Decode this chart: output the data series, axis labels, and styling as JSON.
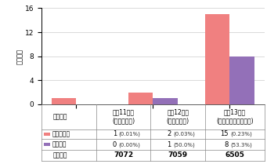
{
  "categories": [
    "平成11年度\n(超音波併用)",
    "平成12年度\n(超音波併用)",
    "平成13年度\n(マンモグラフィ併用)"
  ],
  "cancer_found": [
    1,
    2,
    15
  ],
  "early_cancer": [
    0,
    1,
    8
  ],
  "cancer_color": "#F08080",
  "early_color": "#9370B8",
  "ylabel": "（人数）",
  "xlabel": "（年度）",
  "ylim": [
    0,
    16
  ],
  "yticks": [
    0,
    4,
    8,
    12,
    16
  ],
  "bar_width": 0.32,
  "legend_cancer": "がん発見数",
  "legend_early": "早期がん",
  "row1_label": "がん発見数",
  "row1_values": [
    "1  (0.01%)",
    "2  (0.03%)",
    "15(0.23%)"
  ],
  "row1_values_bold": [
    "1",
    "2",
    "15"
  ],
  "row1_values_pct": [
    "(0.01%)",
    "(0.03%)",
    "(0.23%)"
  ],
  "row2_label": "早期がん",
  "row2_values_bold": [
    "0",
    "1",
    "8"
  ],
  "row2_values_pct": [
    "(0.00%)",
    "(50.0%)",
    "(53.3%)"
  ],
  "row3_label": "受診者数",
  "row3_values": [
    "7072",
    "7059",
    "6505"
  ],
  "bg_color": "#FFFFFF",
  "grid_color": "#CCCCCC",
  "table_line_color": "#888888"
}
